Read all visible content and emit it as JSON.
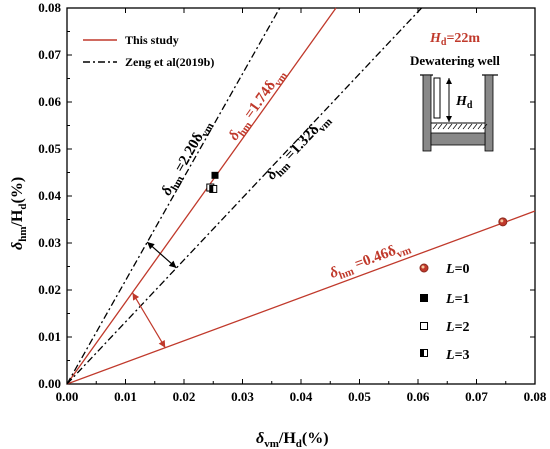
{
  "chart_data": {
    "type": "line",
    "x_axis": {
      "label_main": "δ",
      "label_sub": "vm",
      "label_rest": "/H",
      "label_sub2": "d",
      "label_unit": "(%)",
      "range": [
        0,
        0.08
      ],
      "ticks": [
        "0.00",
        "0.01",
        "0.02",
        "0.03",
        "0.04",
        "0.05",
        "0.06",
        "0.07",
        "0.08"
      ]
    },
    "y_axis": {
      "label_main": "δ",
      "label_sub": "hm",
      "label_rest": "/H",
      "label_sub2": "d",
      "label_unit": "(%)",
      "range": [
        0,
        0.08
      ],
      "ticks": [
        "0.00",
        "0.01",
        "0.02",
        "0.03",
        "0.04",
        "0.05",
        "0.06",
        "0.07",
        "0.08"
      ]
    },
    "series": [
      {
        "name": "This study",
        "color": "#c0392b",
        "style": "solid",
        "lines": [
          {
            "slope": 1.74
          },
          {
            "slope": 0.46
          }
        ]
      },
      {
        "name": "Zeng et al(2019b)",
        "color": "#000000",
        "style": "dashdot",
        "lines": [
          {
            "slope": 2.2
          },
          {
            "slope": 1.32
          }
        ]
      }
    ],
    "points": [
      {
        "name": "L=0",
        "marker": "circle-red",
        "x": 0.0745,
        "y": 0.0345
      },
      {
        "name": "L=1",
        "marker": "square-filled",
        "x": 0.0253,
        "y": 0.0444
      },
      {
        "name": "L=2",
        "marker": "square-open",
        "x": 0.0245,
        "y": 0.0418
      },
      {
        "name": "L=3",
        "marker": "square-half",
        "x": 0.025,
        "y": 0.0415
      }
    ],
    "equations": [
      {
        "lhs": "δ",
        "lhs_sub": "hm",
        "rhs": " =2.20δ",
        "rhs_sub": "vm",
        "color": "black"
      },
      {
        "lhs": "δ",
        "lhs_sub": "hm",
        "rhs": " =1.74δ",
        "rhs_sub": "vm",
        "color": "red"
      },
      {
        "lhs": "δ",
        "lhs_sub": "hm",
        "rhs": " =1.32δ",
        "rhs_sub": "vm",
        "color": "black"
      },
      {
        "lhs": "δ",
        "lhs_sub": "hm",
        "rhs": " =0.46δ",
        "rhs_sub": "vm",
        "color": "red"
      }
    ],
    "legend_lines": [
      "This study",
      "Zeng et al(2019b)"
    ],
    "legend_points": [
      {
        "var": "L",
        "val": "=0"
      },
      {
        "var": "L",
        "val": "=1"
      },
      {
        "var": "L",
        "val": "=2"
      },
      {
        "var": "L",
        "val": "=3"
      }
    ],
    "inset": {
      "hd_label": "H",
      "hd_sub": "d",
      "hd_value": "=22m",
      "title": "Dewatering well"
    },
    "grid": false
  }
}
